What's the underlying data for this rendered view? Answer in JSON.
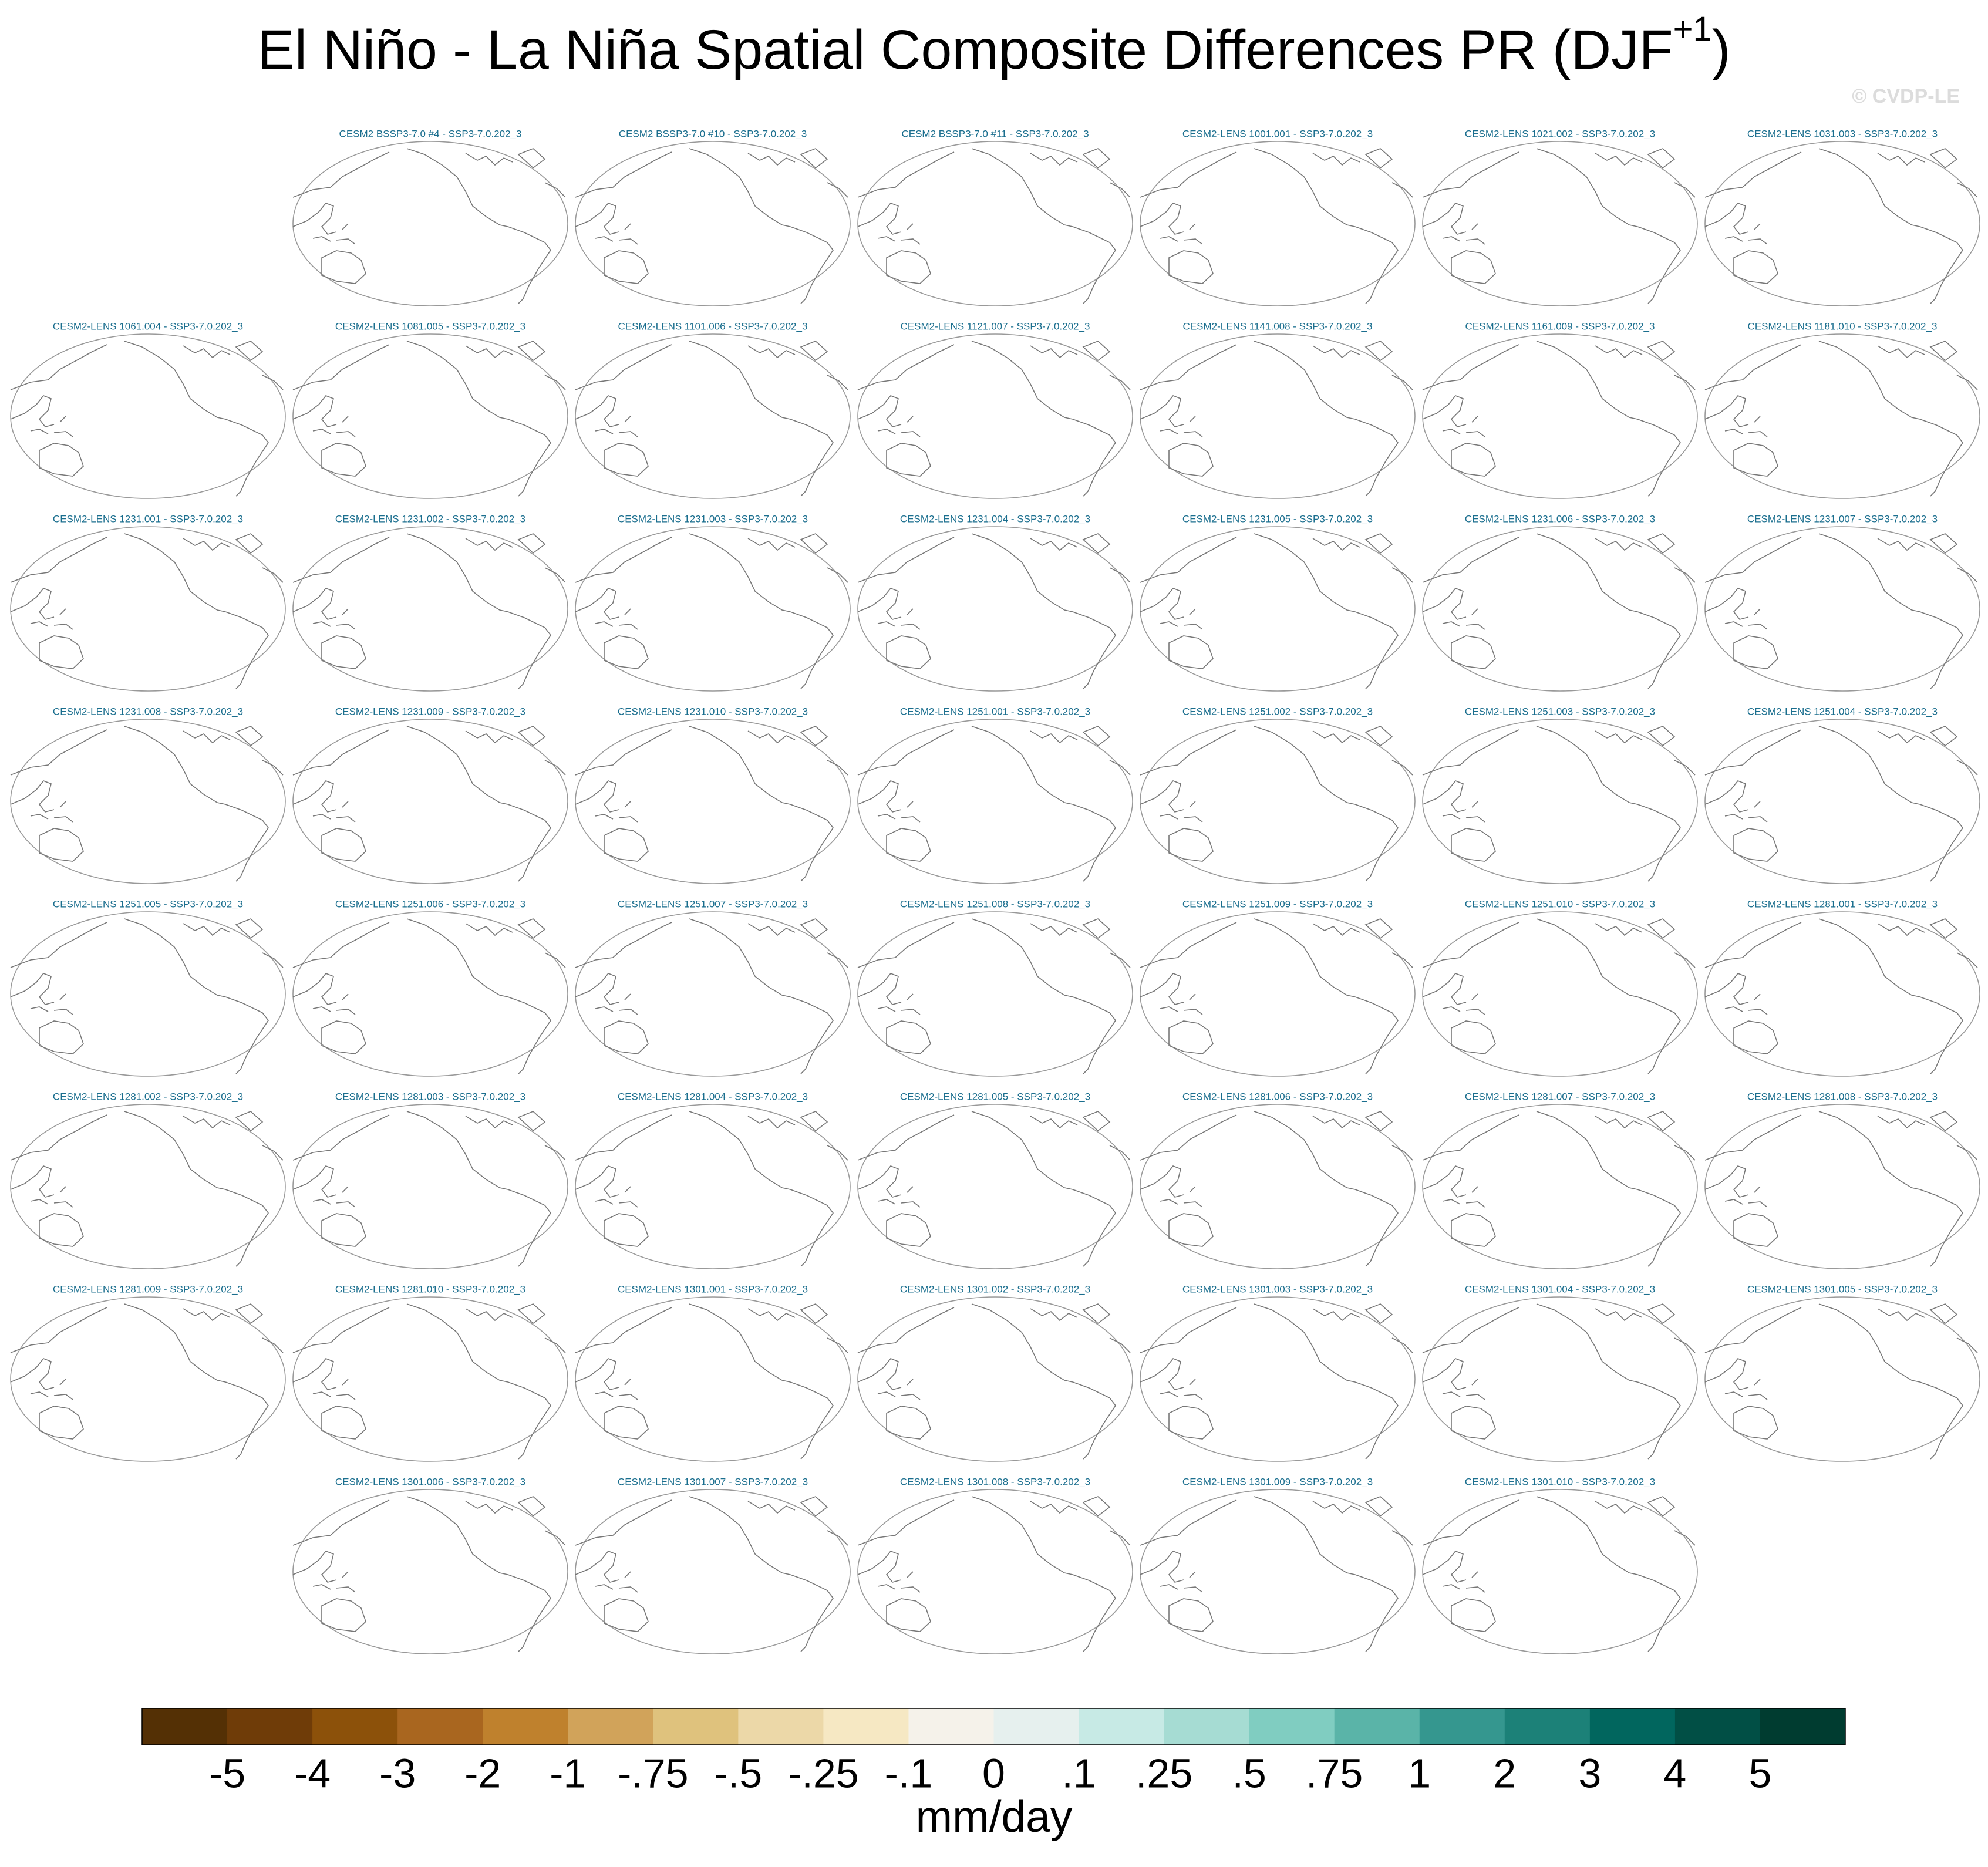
{
  "chart_data": {
    "type": "map-panels",
    "title": "El Niño - La Niña Spatial Composite Differences PR (DJF",
    "title_superscript": "+1",
    "title_end": ")",
    "watermark": "© CVDP-LE",
    "rows": [
      [
        "CESM2 BSSP3-7.0 #4 - SSP3-7.0.202_3",
        "CESM2 BSSP3-7.0 #10 - SSP3-7.0.202_3",
        "CESM2 BSSP3-7.0 #11 - SSP3-7.0.202_3",
        "CESM2-LENS 1001.001 - SSP3-7.0.202_3",
        "CESM2-LENS 1021.002 - SSP3-7.0.202_3",
        "CESM2-LENS 1031.003 - SSP3-7.0.202_3"
      ],
      [
        "CESM2-LENS 1061.004 - SSP3-7.0.202_3",
        "CESM2-LENS 1081.005 - SSP3-7.0.202_3",
        "CESM2-LENS 1101.006 - SSP3-7.0.202_3",
        "CESM2-LENS 1121.007 - SSP3-7.0.202_3",
        "CESM2-LENS 1141.008 - SSP3-7.0.202_3",
        "CESM2-LENS 1161.009 - SSP3-7.0.202_3",
        "CESM2-LENS 1181.010 - SSP3-7.0.202_3"
      ],
      [
        "CESM2-LENS 1231.001 - SSP3-7.0.202_3",
        "CESM2-LENS 1231.002 - SSP3-7.0.202_3",
        "CESM2-LENS 1231.003 - SSP3-7.0.202_3",
        "CESM2-LENS 1231.004 - SSP3-7.0.202_3",
        "CESM2-LENS 1231.005 - SSP3-7.0.202_3",
        "CESM2-LENS 1231.006 - SSP3-7.0.202_3",
        "CESM2-LENS 1231.007 - SSP3-7.0.202_3"
      ],
      [
        "CESM2-LENS 1231.008 - SSP3-7.0.202_3",
        "CESM2-LENS 1231.009 - SSP3-7.0.202_3",
        "CESM2-LENS 1231.010 - SSP3-7.0.202_3",
        "CESM2-LENS 1251.001 - SSP3-7.0.202_3",
        "CESM2-LENS 1251.002 - SSP3-7.0.202_3",
        "CESM2-LENS 1251.003 - SSP3-7.0.202_3",
        "CESM2-LENS 1251.004 - SSP3-7.0.202_3"
      ],
      [
        "CESM2-LENS 1251.005 - SSP3-7.0.202_3",
        "CESM2-LENS 1251.006 - SSP3-7.0.202_3",
        "CESM2-LENS 1251.007 - SSP3-7.0.202_3",
        "CESM2-LENS 1251.008 - SSP3-7.0.202_3",
        "CESM2-LENS 1251.009 - SSP3-7.0.202_3",
        "CESM2-LENS 1251.010 - SSP3-7.0.202_3",
        "CESM2-LENS 1281.001 - SSP3-7.0.202_3"
      ],
      [
        "CESM2-LENS 1281.002 - SSP3-7.0.202_3",
        "CESM2-LENS 1281.003 - SSP3-7.0.202_3",
        "CESM2-LENS 1281.004 - SSP3-7.0.202_3",
        "CESM2-LENS 1281.005 - SSP3-7.0.202_3",
        "CESM2-LENS 1281.006 - SSP3-7.0.202_3",
        "CESM2-LENS 1281.007 - SSP3-7.0.202_3",
        "CESM2-LENS 1281.008 - SSP3-7.0.202_3"
      ],
      [
        "CESM2-LENS 1281.009 - SSP3-7.0.202_3",
        "CESM2-LENS 1281.010 - SSP3-7.0.202_3",
        "CESM2-LENS 1301.001 - SSP3-7.0.202_3",
        "CESM2-LENS 1301.002 - SSP3-7.0.202_3",
        "CESM2-LENS 1301.003 - SSP3-7.0.202_3",
        "CESM2-LENS 1301.004 - SSP3-7.0.202_3",
        "CESM2-LENS 1301.005 - SSP3-7.0.202_3"
      ],
      [
        "CESM2-LENS 1301.006 - SSP3-7.0.202_3",
        "CESM2-LENS 1301.007 - SSP3-7.0.202_3",
        "CESM2-LENS 1301.008 - SSP3-7.0.202_3",
        "CESM2-LENS 1301.009 - SSP3-7.0.202_3",
        "CESM2-LENS 1301.010 - SSP3-7.0.202_3"
      ]
    ],
    "colorbar": {
      "colors": [
        "#543005",
        "#6f3c08",
        "#8c510a",
        "#a9661f",
        "#bf812d",
        "#d1a35a",
        "#dfc27d",
        "#ecd8a8",
        "#f6e8c3",
        "#f5f2ea",
        "#e6f0ee",
        "#c7eae5",
        "#a6dcd3",
        "#80cdc1",
        "#5ab4a8",
        "#35978f",
        "#1c8178",
        "#01665e",
        "#014f45",
        "#003c30"
      ],
      "ticks": [
        -5,
        -4,
        -3,
        -2,
        -1,
        {
          "value": -0.75,
          "label": "-.75"
        },
        {
          "value": -0.5,
          "label": "-.5"
        },
        {
          "value": -0.25,
          "label": "-.25"
        },
        {
          "value": -0.1,
          "label": "-.1"
        },
        0,
        {
          "value": 0.1,
          "label": ".1"
        },
        {
          "value": 0.25,
          "label": ".25"
        },
        {
          "value": 0.5,
          "label": ".5"
        },
        {
          "value": 0.75,
          "label": ".75"
        },
        1,
        2,
        3,
        4,
        5
      ],
      "label": "mm/day"
    }
  }
}
